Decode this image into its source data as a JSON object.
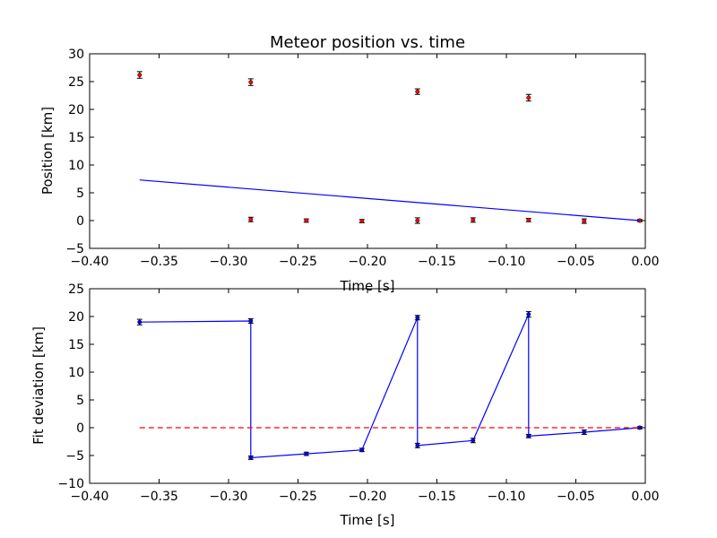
{
  "chart_data": [
    {
      "type": "scatter",
      "title": "Meteor position vs. time",
      "xlabel": "Time [s]",
      "ylabel": "Position [km]",
      "xlim": [
        -0.4,
        0.0
      ],
      "ylim": [
        -5,
        30
      ],
      "xticks": [
        "−0.40",
        "−0.35",
        "−0.30",
        "−0.25",
        "−0.20",
        "−0.15",
        "−0.10",
        "−0.05",
        "0.00"
      ],
      "yticks": [
        "−5",
        "0",
        "5",
        "10",
        "15",
        "20",
        "25",
        "30"
      ],
      "colors": {
        "points": "#ff0000",
        "fit": "#0000ff"
      },
      "series": [
        {
          "kind": "points_with_errorbars",
          "x": [
            -0.364,
            -0.284,
            -0.164,
            -0.084,
            -0.284,
            -0.244,
            -0.204,
            -0.164,
            -0.124,
            -0.084,
            -0.044,
            -0.004
          ],
          "y": [
            26.2,
            24.9,
            23.2,
            22.1,
            0.2,
            0.0,
            -0.1,
            0.0,
            0.1,
            0.1,
            -0.1,
            0.0
          ],
          "yerr": [
            0.6,
            0.6,
            0.5,
            0.6,
            0.4,
            0.3,
            0.3,
            0.5,
            0.4,
            0.3,
            0.4,
            0.2
          ]
        },
        {
          "kind": "fit_line",
          "x": [
            -0.364,
            -0.004
          ],
          "y": [
            7.3,
            0.0
          ]
        }
      ]
    },
    {
      "type": "line",
      "xlabel": "Time [s]",
      "ylabel": "Fit deviation [km]",
      "xlim": [
        -0.4,
        0.0
      ],
      "ylim": [
        -10,
        25
      ],
      "xticks": [
        "−0.40",
        "−0.35",
        "−0.30",
        "−0.25",
        "−0.20",
        "−0.15",
        "−0.10",
        "−0.05",
        "0.00"
      ],
      "yticks": [
        "−10",
        "−5",
        "0",
        "5",
        "10",
        "15",
        "20",
        "25"
      ],
      "colors": {
        "series": "#0000ff",
        "zero": "#ff0000"
      },
      "series": [
        {
          "kind": "line_with_errorbars",
          "x": [
            -0.364,
            -0.284,
            -0.284,
            -0.244,
            -0.204,
            -0.164,
            -0.164,
            -0.124,
            -0.084,
            -0.084,
            -0.044,
            -0.004
          ],
          "y": [
            19.0,
            19.2,
            -5.4,
            -4.7,
            -4.0,
            19.8,
            -3.2,
            -2.3,
            20.4,
            -1.5,
            -0.8,
            0.0
          ],
          "yerr": [
            0.5,
            0.4,
            0.3,
            0.3,
            0.3,
            0.4,
            0.4,
            0.4,
            0.5,
            0.3,
            0.4,
            0.2
          ]
        },
        {
          "kind": "zero_dashed",
          "x": [
            -0.364,
            -0.004
          ],
          "y": [
            0,
            0
          ]
        }
      ]
    }
  ]
}
